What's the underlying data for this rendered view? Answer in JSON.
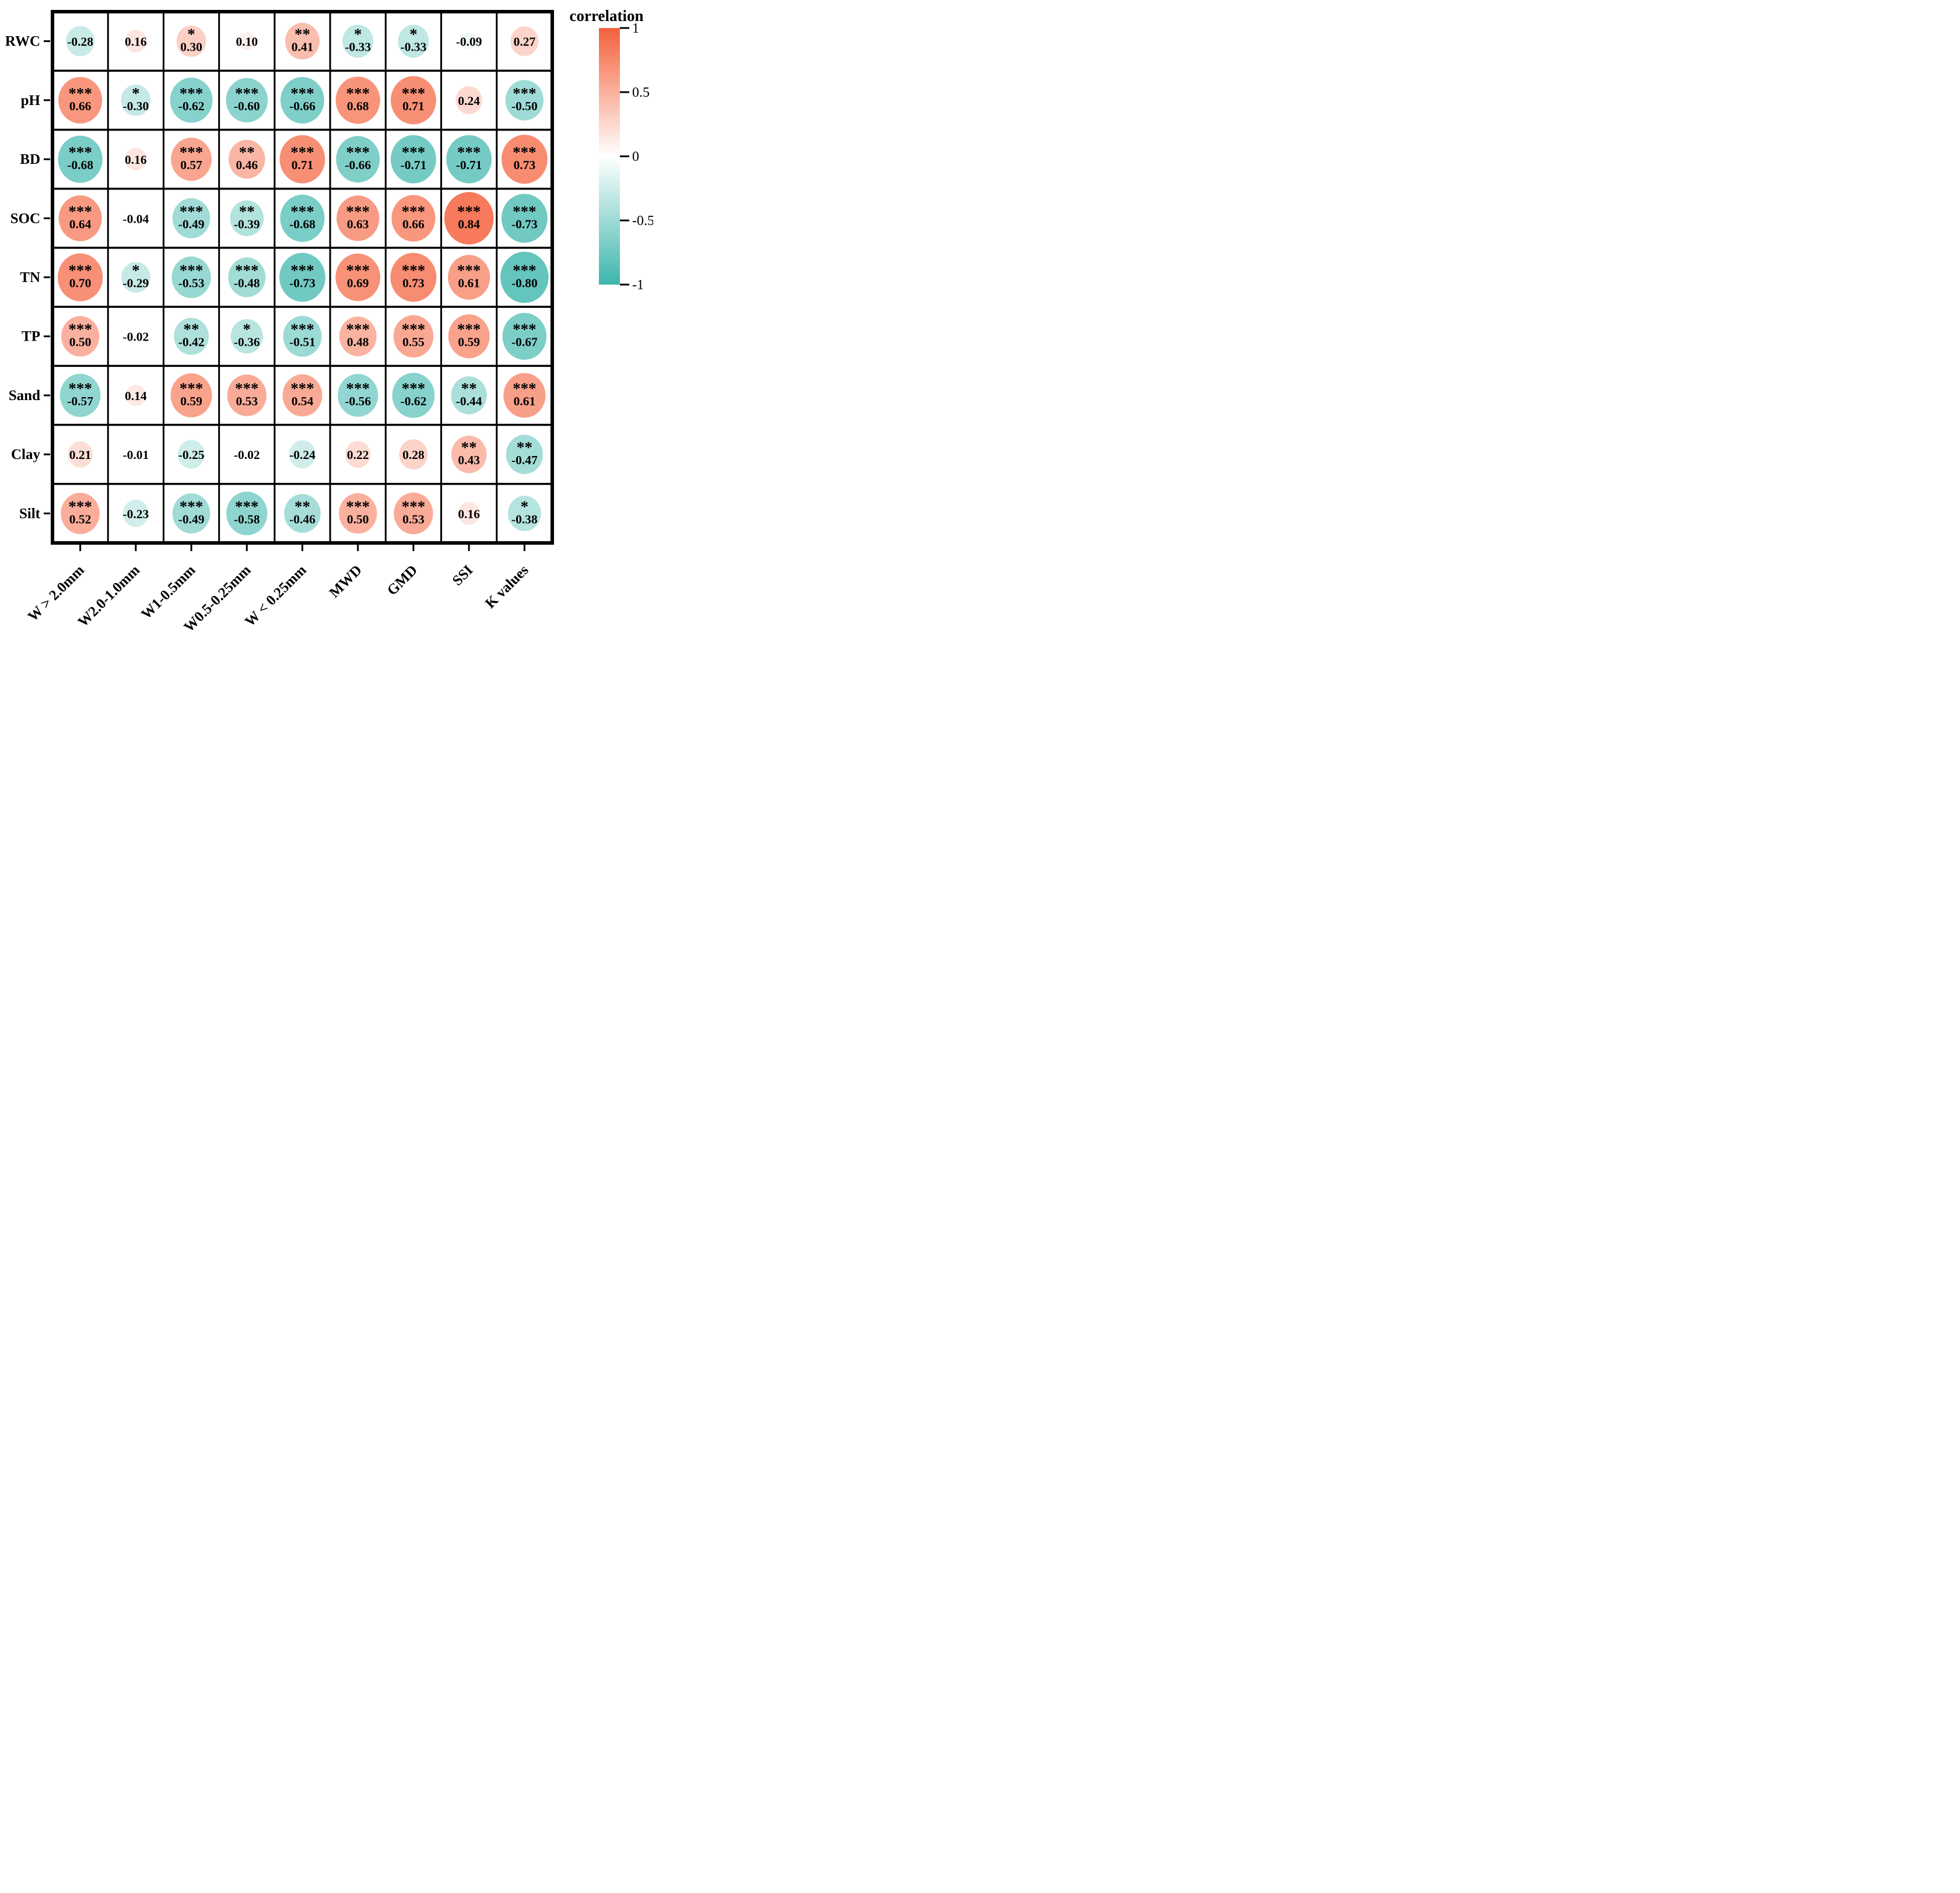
{
  "legend": {
    "title": "correlation",
    "ticks": [
      "1",
      "0.5",
      "0",
      "-0.5",
      "-1"
    ],
    "color_positive": "#f4613c",
    "color_negative": "#3db6ac",
    "color_zero": "#ffffff"
  },
  "chart_data": {
    "type": "heatmap",
    "subtype": "correlation-matrix-bubble",
    "title": "",
    "legend_title": "correlation",
    "legend_position": "right",
    "value_range": [
      -1,
      1
    ],
    "cell_shape": "ellipse",
    "rows": [
      "RWC",
      "pH",
      "BD",
      "SOC",
      "TN",
      "TP",
      "Sand",
      "Clay",
      "Silt"
    ],
    "columns": [
      "W > 2.0mm",
      "W2.0-1.0mm",
      "W1-0.5mm",
      "W0.5-0.25mm",
      "W < 0.25mm",
      "MWD",
      "GMD",
      "SSI",
      "K values"
    ],
    "values": [
      [
        -0.28,
        0.16,
        0.3,
        0.1,
        0.41,
        -0.33,
        -0.33,
        -0.09,
        0.27
      ],
      [
        0.66,
        -0.3,
        -0.62,
        -0.6,
        -0.66,
        0.68,
        0.71,
        0.24,
        -0.5
      ],
      [
        -0.68,
        0.16,
        0.57,
        0.46,
        0.71,
        -0.66,
        -0.71,
        -0.71,
        0.73
      ],
      [
        0.64,
        -0.04,
        -0.49,
        -0.39,
        -0.68,
        0.63,
        0.66,
        0.84,
        -0.73
      ],
      [
        0.7,
        -0.29,
        -0.53,
        -0.48,
        -0.73,
        0.69,
        0.73,
        0.61,
        -0.8
      ],
      [
        0.5,
        -0.02,
        -0.42,
        -0.36,
        -0.51,
        0.48,
        0.55,
        0.59,
        -0.67
      ],
      [
        -0.57,
        0.14,
        0.59,
        0.53,
        0.54,
        -0.56,
        -0.62,
        -0.44,
        0.61
      ],
      [
        0.21,
        -0.01,
        -0.25,
        -0.02,
        -0.24,
        0.22,
        0.28,
        0.43,
        -0.47
      ],
      [
        0.52,
        -0.23,
        -0.49,
        -0.58,
        -0.46,
        0.5,
        0.53,
        0.16,
        -0.38
      ]
    ],
    "significance": [
      [
        "",
        "",
        "*",
        "",
        "**",
        "*",
        "*",
        "",
        ""
      ],
      [
        "***",
        "*",
        "***",
        "***",
        "***",
        "***",
        "***",
        "",
        "***"
      ],
      [
        "***",
        "",
        "***",
        "**",
        "***",
        "***",
        "***",
        "***",
        "***"
      ],
      [
        "***",
        "",
        "***",
        "**",
        "***",
        "***",
        "***",
        "***",
        "***"
      ],
      [
        "***",
        "*",
        "***",
        "***",
        "***",
        "***",
        "***",
        "***",
        "***"
      ],
      [
        "***",
        "",
        "**",
        "*",
        "***",
        "***",
        "***",
        "***",
        "***"
      ],
      [
        "***",
        "",
        "***",
        "***",
        "***",
        "***",
        "***",
        "**",
        "***"
      ],
      [
        "",
        "",
        "",
        "",
        "",
        "",
        "",
        "**",
        "**"
      ],
      [
        "***",
        "",
        "***",
        "***",
        "**",
        "***",
        "***",
        "",
        "*"
      ]
    ]
  }
}
